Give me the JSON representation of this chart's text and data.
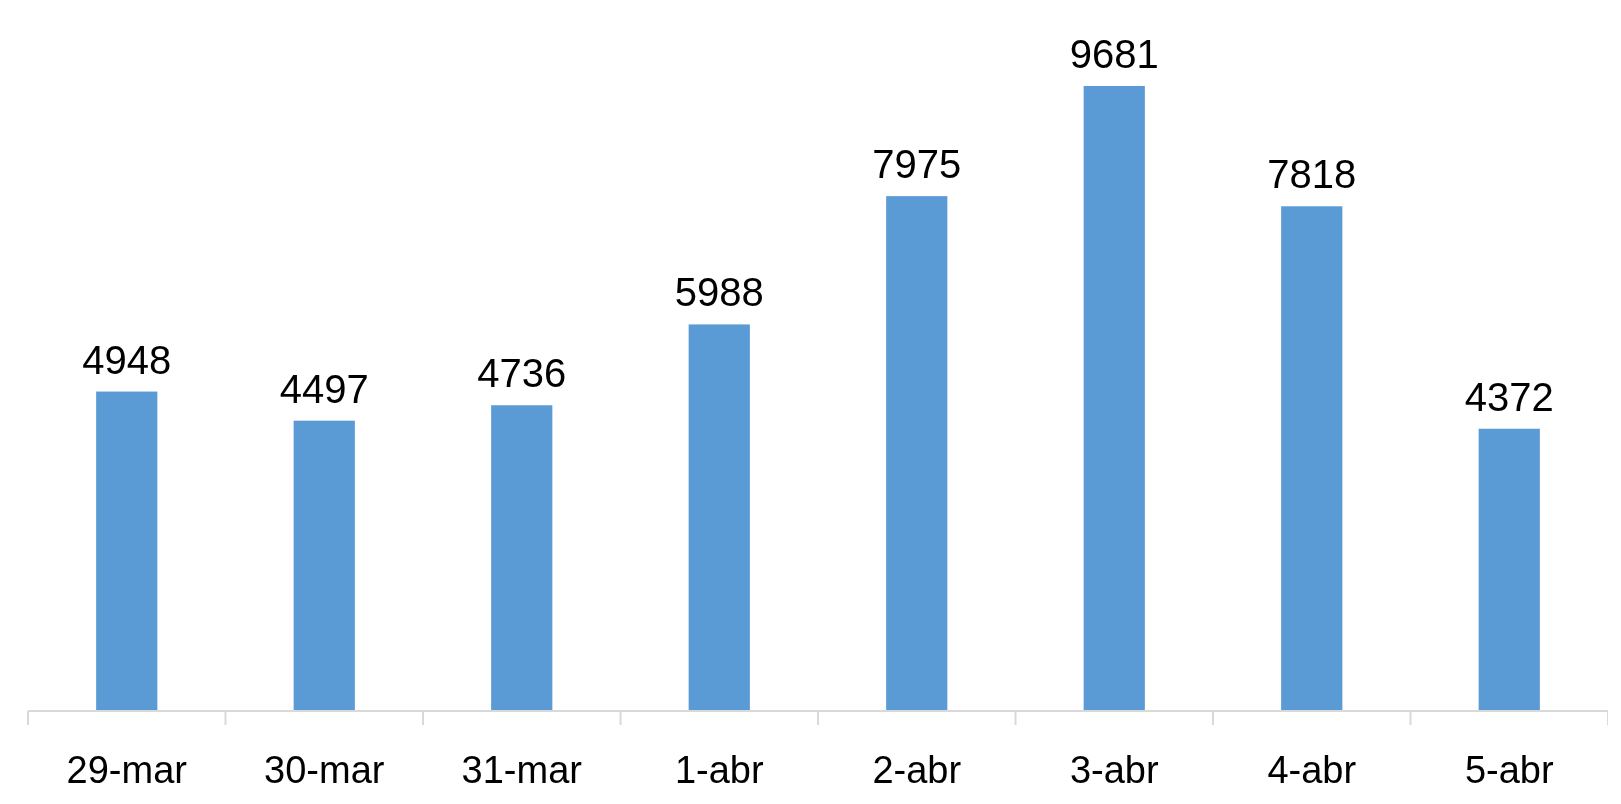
{
  "chart_data": {
    "type": "bar",
    "categories": [
      "29-mar",
      "30-mar",
      "31-mar",
      "1-abr",
      "2-abr",
      "3-abr",
      "4-abr",
      "5-abr"
    ],
    "values": [
      4948,
      4497,
      4736,
      5988,
      7975,
      9681,
      7818,
      4372
    ],
    "color": "#5b9bd5",
    "data_labels": true
  }
}
